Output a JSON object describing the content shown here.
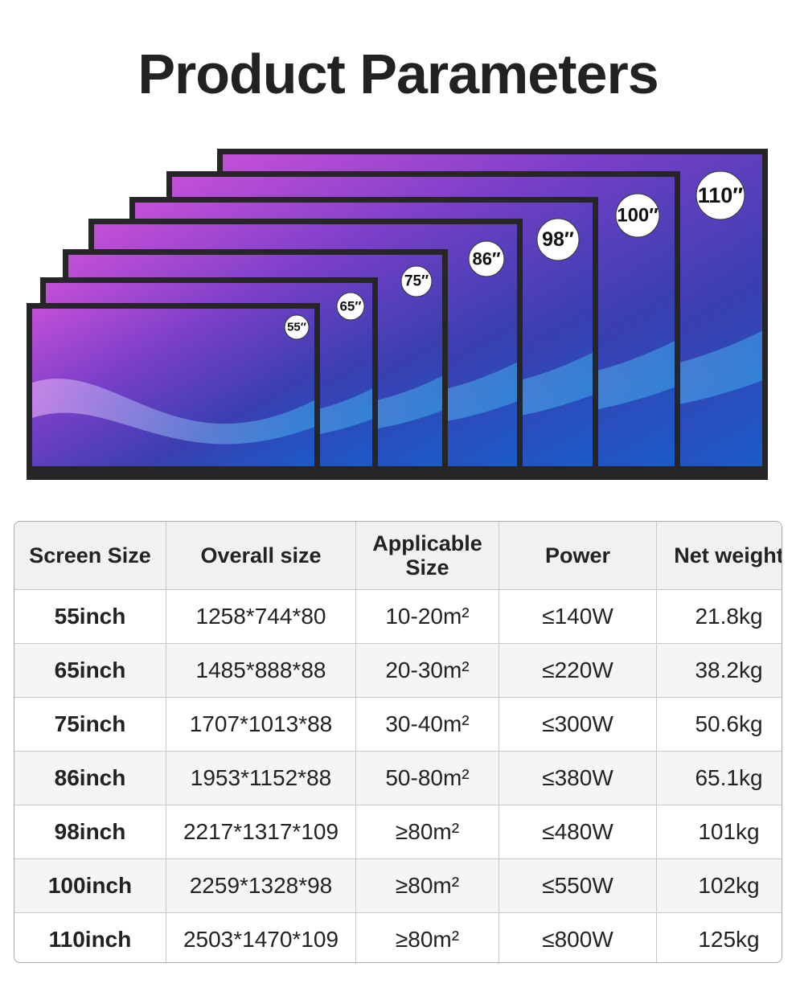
{
  "header": {
    "title": "Product Parameters"
  },
  "screens": [
    {
      "label": "110″"
    },
    {
      "label": "100″"
    },
    {
      "label": "98″"
    },
    {
      "label": "86″"
    },
    {
      "label": "75″"
    },
    {
      "label": "65″"
    },
    {
      "label": "55″"
    }
  ],
  "table": {
    "columns": [
      "Screen Size",
      "Overall size",
      "Applicable Size",
      "Power",
      "Net weight"
    ],
    "rows": [
      [
        "55inch",
        "1258*744*80",
        "10-20m²",
        "≤140W",
        "21.8kg"
      ],
      [
        "65inch",
        "1485*888*88",
        "20-30m²",
        "≤220W",
        "38.2kg"
      ],
      [
        "75inch",
        "1707*1013*88",
        "30-40m²",
        "≤300W",
        "50.6kg"
      ],
      [
        "86inch",
        "1953*1152*88",
        "50-80m²",
        "≤380W",
        "65.1kg"
      ],
      [
        "98inch",
        "2217*1317*109",
        "≥80m²",
        "≤480W",
        "101kg"
      ],
      [
        "100inch",
        "2259*1328*98",
        "≥80m²",
        "≤550W",
        "102kg"
      ],
      [
        "110inch",
        "2503*1470*109",
        "≥80m²",
        "≤800W",
        "125kg"
      ]
    ]
  }
}
